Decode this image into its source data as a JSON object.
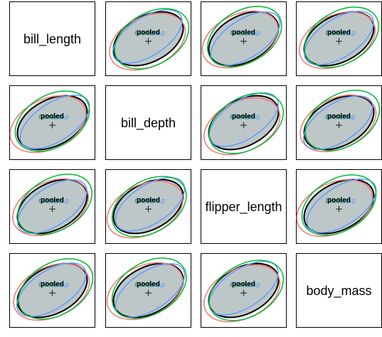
{
  "chart_data": {
    "type": "scatter",
    "variables": [
      "bill_length",
      "bill_depth",
      "flipper_length",
      "body_mass"
    ],
    "series": [
      {
        "name": "Adelie",
        "color": "#F8766D"
      },
      {
        "name": "Chinstrap",
        "color": "#619CFF"
      },
      {
        "name": "Gentoo",
        "color": "#00BA38"
      },
      {
        "name": "pooled",
        "color": "#000000",
        "fill": "#BEC7C7"
      }
    ],
    "center_marker": "+",
    "ellipse_fill": "#BEC7C7",
    "labels": {
      "adelie": "Adelie",
      "chinstrap": "Chinstrap",
      "gentoo": "Gentoo",
      "pooled": "pooled"
    },
    "grid": false,
    "legend": "none"
  }
}
